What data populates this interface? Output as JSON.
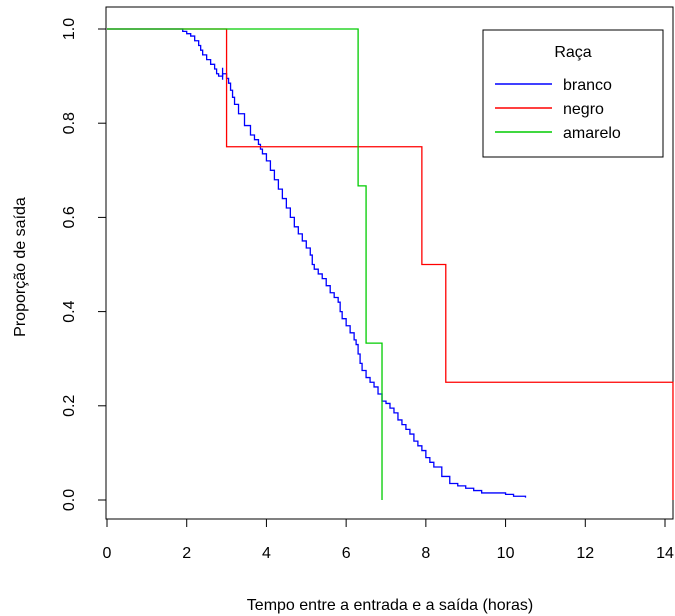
{
  "chart_data": {
    "type": "line",
    "step": true,
    "xlabel": "Tempo entre a entrada e a saída (horas)",
    "ylabel": "Proporção de saída",
    "xlim": [
      0,
      14
    ],
    "ylim": [
      0,
      1
    ],
    "x_ticks": [
      "0",
      "2",
      "4",
      "6",
      "8",
      "10",
      "12",
      "14"
    ],
    "y_ticks": [
      "0.0",
      "0.2",
      "0.4",
      "0.6",
      "0.8",
      "1.0"
    ],
    "grid": false,
    "legend": {
      "title": "Raça",
      "position": "top-right"
    },
    "series": [
      {
        "name": "branco",
        "color": "#0000ff",
        "x": [
          0,
          1.9,
          2.0,
          2.1,
          2.2,
          2.3,
          2.35,
          2.4,
          2.5,
          2.6,
          2.7,
          2.75,
          2.8,
          2.9,
          3.0,
          3.05,
          3.1,
          3.15,
          3.2,
          3.3,
          3.45,
          3.6,
          3.7,
          3.8,
          3.85,
          3.9,
          4.0,
          4.1,
          4.2,
          4.3,
          4.4,
          4.5,
          4.6,
          4.7,
          4.8,
          4.9,
          5.0,
          5.1,
          5.15,
          5.2,
          5.3,
          5.4,
          5.5,
          5.6,
          5.7,
          5.8,
          5.85,
          5.9,
          6.0,
          6.1,
          6.2,
          6.25,
          6.3,
          6.35,
          6.4,
          6.5,
          6.6,
          6.7,
          6.8,
          6.9,
          7.0,
          7.1,
          7.2,
          7.3,
          7.4,
          7.5,
          7.6,
          7.7,
          7.8,
          7.9,
          8.0,
          8.1,
          8.2,
          8.4,
          8.6,
          8.8,
          9.0,
          9.2,
          9.4,
          9.6,
          9.8,
          10.0,
          10.2,
          10.5
        ],
        "values": [
          1.0,
          0.995,
          0.99,
          0.985,
          0.975,
          0.965,
          0.955,
          0.945,
          0.935,
          0.925,
          0.915,
          0.905,
          0.9,
          0.905,
          0.895,
          0.885,
          0.87,
          0.855,
          0.84,
          0.82,
          0.795,
          0.775,
          0.765,
          0.755,
          0.745,
          0.735,
          0.72,
          0.7,
          0.68,
          0.66,
          0.64,
          0.62,
          0.6,
          0.58,
          0.565,
          0.55,
          0.535,
          0.52,
          0.5,
          0.49,
          0.48,
          0.47,
          0.455,
          0.44,
          0.43,
          0.42,
          0.4,
          0.385,
          0.37,
          0.355,
          0.34,
          0.33,
          0.31,
          0.29,
          0.275,
          0.26,
          0.25,
          0.24,
          0.225,
          0.21,
          0.205,
          0.195,
          0.185,
          0.17,
          0.16,
          0.15,
          0.14,
          0.125,
          0.115,
          0.105,
          0.09,
          0.08,
          0.07,
          0.05,
          0.035,
          0.03,
          0.025,
          0.02,
          0.015,
          0.015,
          0.015,
          0.012,
          0.008,
          0.005
        ],
        "censor_marks": [
          {
            "x": 2.9,
            "y": 0.905
          }
        ]
      },
      {
        "name": "negro",
        "color": "#ff0000",
        "x": [
          0,
          3.0,
          7.9,
          8.5,
          14.2
        ],
        "values": [
          1.0,
          0.75,
          0.5,
          0.25,
          0.0
        ]
      },
      {
        "name": "amarelo",
        "color": "#00cc00",
        "x": [
          0,
          6.3,
          6.5,
          6.9
        ],
        "values": [
          1.0,
          0.667,
          0.333,
          0.0
        ]
      }
    ]
  }
}
